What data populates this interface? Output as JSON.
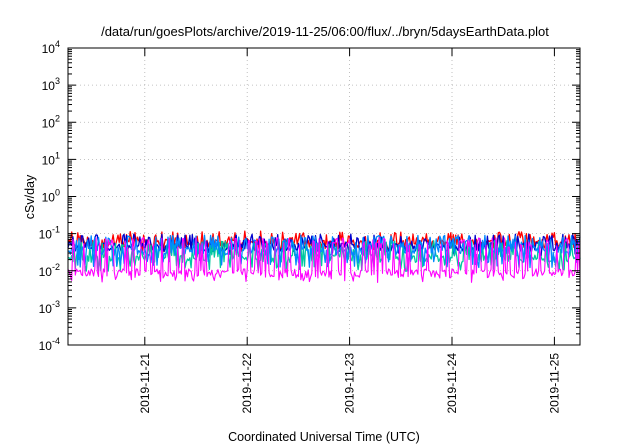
{
  "chart_data": {
    "type": "line",
    "title": "/data/run/goesPlots/archive/2019-11-25/06:00/flux/../bryn/5daysEarthData.plot",
    "xlabel": "Coordinated Universal Time (UTC)",
    "ylabel": "cSv/day",
    "yscale": "log",
    "ylim": [
      0.0001,
      10000
    ],
    "y_ticks": [
      {
        "base": "10",
        "exp": "-4"
      },
      {
        "base": "10",
        "exp": "-3"
      },
      {
        "base": "10",
        "exp": "-2"
      },
      {
        "base": "10",
        "exp": "-1"
      },
      {
        "base": "10",
        "exp": "0"
      },
      {
        "base": "10",
        "exp": "1"
      },
      {
        "base": "10",
        "exp": "2"
      },
      {
        "base": "10",
        "exp": "3"
      },
      {
        "base": "10",
        "exp": "4"
      }
    ],
    "xlim": [
      "2019-11-20T06:00",
      "2019-11-25T06:00"
    ],
    "x_ticks": [
      "2019-11-21",
      "2019-11-22",
      "2019-11-23",
      "2019-11-24",
      "2019-11-25"
    ],
    "grid": true,
    "series": [
      {
        "color": "#ff0000",
        "base": 0.055,
        "low": 0.04,
        "high": 0.09
      },
      {
        "color": "#0000cc",
        "base": 0.045,
        "low": 0.03,
        "high": 0.075
      },
      {
        "color": "#00c8a0",
        "base": 0.022,
        "low": 0.012,
        "high": 0.05
      },
      {
        "color": "#0088ff",
        "base": 0.035,
        "low": 0.015,
        "high": 0.07
      },
      {
        "color": "#ff00ff",
        "base": 0.009,
        "low": 0.006,
        "high": 0.06
      }
    ]
  }
}
